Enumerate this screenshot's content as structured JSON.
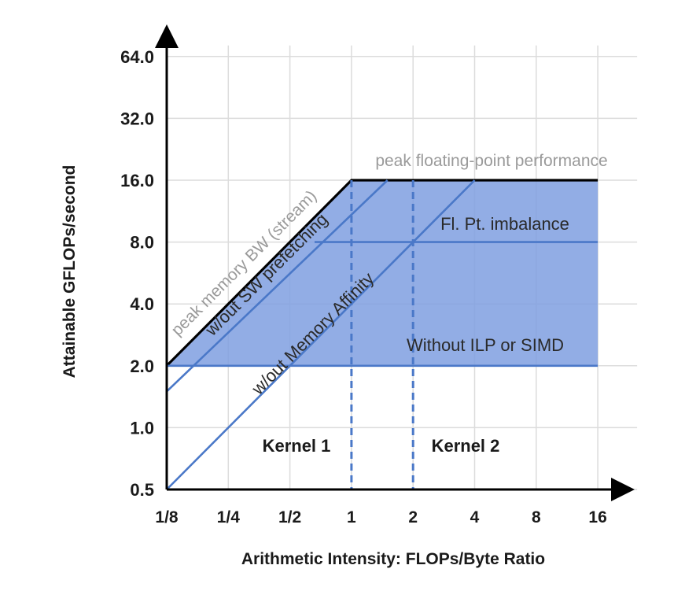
{
  "chart_data": {
    "type": "line",
    "subtype": "roofline",
    "title": "",
    "xlabel": "Arithmetic Intensity: FLOPs/Byte Ratio",
    "ylabel": "Attainable GFLOPs/second",
    "x_scale": "log2",
    "y_scale": "log2",
    "xlim": [
      0.125,
      16
    ],
    "ylim": [
      0.5,
      64
    ],
    "x_ticks": [
      0.125,
      0.25,
      0.5,
      1,
      2,
      4,
      8,
      16
    ],
    "x_tick_labels": [
      "1/8",
      "1/4",
      "1/2",
      "1",
      "2",
      "4",
      "8",
      "16"
    ],
    "y_ticks": [
      0.5,
      1,
      2,
      4,
      8,
      16,
      32,
      64
    ],
    "y_tick_labels": [
      "0.5",
      "1.0",
      "2.0",
      "4.0",
      "8.0",
      "16.0",
      "32.0",
      "64.0"
    ],
    "grid": true,
    "series": [
      {
        "name": "peak memory BW (stream)",
        "x": [
          0.125,
          1,
          16
        ],
        "y": [
          2,
          16,
          16
        ],
        "color": "#000000",
        "style": "solid"
      },
      {
        "name": "w/out SW prefetching",
        "x": [
          0.125,
          1.5
        ],
        "y": [
          1.5,
          16
        ],
        "color": "#4a78c8",
        "style": "solid"
      },
      {
        "name": "w/out Memory Affinity",
        "x": [
          0.125,
          4
        ],
        "y": [
          0.5,
          16
        ],
        "color": "#4a78c8",
        "style": "solid"
      },
      {
        "name": "Fl. Pt. imbalance",
        "x": [
          0.66,
          16
        ],
        "y": [
          8,
          8
        ],
        "color": "#4a78c8",
        "style": "solid"
      },
      {
        "name": "Without ILP or SIMD",
        "x": [
          0.125,
          16
        ],
        "y": [
          2,
          2
        ],
        "color": "#4a78c8",
        "style": "solid"
      }
    ],
    "vertical_markers": [
      {
        "name": "Kernel 1",
        "x": 1,
        "style": "dashed",
        "color": "#4a78c8"
      },
      {
        "name": "Kernel 2",
        "x": 2,
        "style": "dashed",
        "color": "#4a78c8"
      }
    ],
    "shaded_region": {
      "x": [
        0.125,
        1,
        16,
        16,
        0.125
      ],
      "y": [
        2,
        16,
        16,
        2,
        2
      ],
      "color": "#7f9fe0"
    },
    "annotations": {
      "peak_fp": "peak floating-point performance",
      "peak_bw": "peak memory BW (stream)",
      "no_prefetch": "w/out SW prefetching",
      "no_affinity": "w/out Memory Affinity",
      "fp_imbalance": "Fl. Pt. imbalance",
      "no_ilp": "Without ILP or SIMD",
      "kernel1": "Kernel 1",
      "kernel2": "Kernel 2"
    },
    "colors": {
      "fill": "#7f9fe0",
      "line": "#4a78c8",
      "roof": "#000000",
      "grid": "#dcdcdc",
      "axis": "#000000"
    }
  }
}
